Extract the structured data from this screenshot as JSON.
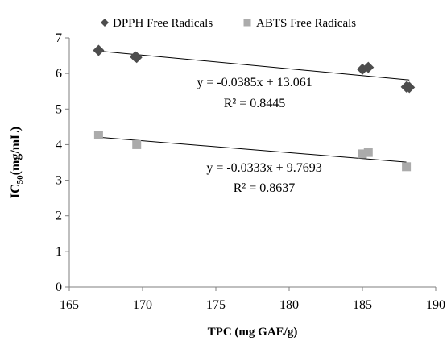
{
  "chart_data": {
    "type": "scatter",
    "xlabel": "TPC (mg GAE/g)",
    "ylabel": {
      "prefix": "IC",
      "subscript": "50",
      "suffix": "(mg/mL)"
    },
    "xlim": [
      165,
      190
    ],
    "ylim": [
      0,
      7
    ],
    "xticks": [
      165,
      170,
      175,
      180,
      185,
      190
    ],
    "yticks": [
      0,
      1,
      2,
      3,
      4,
      5,
      6,
      7
    ],
    "grid": false,
    "legend_position": "top",
    "series": [
      {
        "name": "DPPH Free Radicals",
        "marker": "diamond",
        "color": "#4d4d4d",
        "x": [
          167.0,
          169.5,
          169.6,
          185.0,
          185.4,
          188.0,
          188.2
        ],
        "y": [
          6.65,
          6.47,
          6.45,
          6.12,
          6.17,
          5.62,
          5.61
        ],
        "trendline": {
          "slope": -0.0385,
          "intercept": 13.061,
          "equation": "y = -0.0385x + 13.061",
          "r2": "R² = 0.8445"
        }
      },
      {
        "name": "ABTS Free Radicals",
        "marker": "square",
        "color": "#ababab",
        "x": [
          167.0,
          169.6,
          185.0,
          185.4,
          188.0
        ],
        "y": [
          4.27,
          4.0,
          3.74,
          3.78,
          3.38
        ],
        "trendline": {
          "slope": -0.0333,
          "intercept": 9.7693,
          "equation": "y = -0.0333x + 9.7693",
          "r2": "R² = 0.8637"
        }
      }
    ]
  }
}
